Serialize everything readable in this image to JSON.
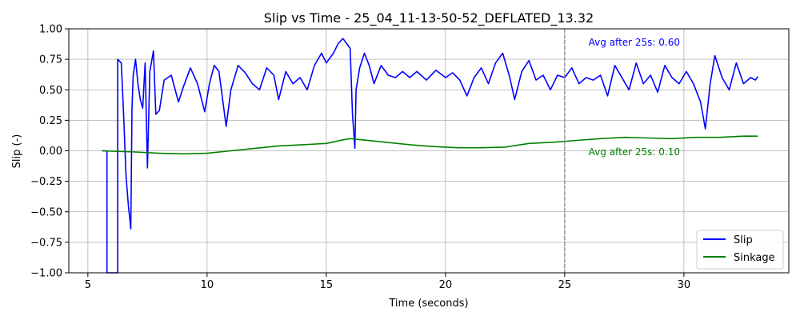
{
  "chart_data": {
    "type": "line",
    "title": "Slip vs Time - 25_04_11-13-50-52_DEFLATED_13.32",
    "xlabel": "Time (seconds)",
    "ylabel": "Slip (-)",
    "xlim": [
      4.2,
      34.4
    ],
    "ylim": [
      -1.0,
      1.0
    ],
    "xticks": [
      5,
      10,
      15,
      20,
      25,
      30
    ],
    "xtick_labels": [
      "5",
      "10",
      "15",
      "20",
      "25",
      "30"
    ],
    "yticks": [
      -1.0,
      -0.75,
      -0.5,
      -0.25,
      0.0,
      0.25,
      0.5,
      0.75,
      1.0
    ],
    "ytick_labels": [
      "−1.00",
      "−0.75",
      "−0.50",
      "−0.25",
      "0.00",
      "0.25",
      "0.50",
      "0.75",
      "1.00"
    ],
    "grid": true,
    "legend_position": "bottom-right",
    "vline": {
      "x": 25,
      "color": "#808080",
      "style": "dashed"
    },
    "series": [
      {
        "name": "Slip",
        "color": "#0000ff",
        "points": [
          [
            5.6,
            0.0
          ],
          [
            5.8,
            0.0
          ],
          [
            5.8,
            -1.0
          ],
          [
            6.25,
            -1.0
          ],
          [
            6.25,
            0.75
          ],
          [
            6.4,
            0.72
          ],
          [
            6.5,
            0.3
          ],
          [
            6.6,
            -0.2
          ],
          [
            6.7,
            -0.45
          ],
          [
            6.8,
            -0.64
          ],
          [
            6.85,
            0.35
          ],
          [
            6.9,
            0.62
          ],
          [
            7.0,
            0.75
          ],
          [
            7.1,
            0.55
          ],
          [
            7.2,
            0.42
          ],
          [
            7.3,
            0.35
          ],
          [
            7.4,
            0.72
          ],
          [
            7.5,
            -0.14
          ],
          [
            7.6,
            0.65
          ],
          [
            7.75,
            0.82
          ],
          [
            7.85,
            0.3
          ],
          [
            8.0,
            0.33
          ],
          [
            8.2,
            0.58
          ],
          [
            8.5,
            0.62
          ],
          [
            8.8,
            0.4
          ],
          [
            9.0,
            0.52
          ],
          [
            9.3,
            0.68
          ],
          [
            9.6,
            0.55
          ],
          [
            9.9,
            0.32
          ],
          [
            10.1,
            0.55
          ],
          [
            10.3,
            0.7
          ],
          [
            10.5,
            0.65
          ],
          [
            10.8,
            0.2
          ],
          [
            11.0,
            0.5
          ],
          [
            11.3,
            0.7
          ],
          [
            11.6,
            0.64
          ],
          [
            11.9,
            0.55
          ],
          [
            12.2,
            0.5
          ],
          [
            12.5,
            0.68
          ],
          [
            12.8,
            0.62
          ],
          [
            13.0,
            0.42
          ],
          [
            13.3,
            0.65
          ],
          [
            13.6,
            0.55
          ],
          [
            13.9,
            0.6
          ],
          [
            14.2,
            0.5
          ],
          [
            14.5,
            0.7
          ],
          [
            14.8,
            0.8
          ],
          [
            15.0,
            0.72
          ],
          [
            15.3,
            0.8
          ],
          [
            15.5,
            0.88
          ],
          [
            15.7,
            0.92
          ],
          [
            16.0,
            0.84
          ],
          [
            16.1,
            0.3
          ],
          [
            16.2,
            0.02
          ],
          [
            16.25,
            0.5
          ],
          [
            16.4,
            0.68
          ],
          [
            16.6,
            0.8
          ],
          [
            16.8,
            0.7
          ],
          [
            17.0,
            0.55
          ],
          [
            17.3,
            0.7
          ],
          [
            17.6,
            0.62
          ],
          [
            17.9,
            0.6
          ],
          [
            18.2,
            0.65
          ],
          [
            18.5,
            0.6
          ],
          [
            18.8,
            0.65
          ],
          [
            19.2,
            0.58
          ],
          [
            19.6,
            0.66
          ],
          [
            20.0,
            0.6
          ],
          [
            20.3,
            0.64
          ],
          [
            20.6,
            0.58
          ],
          [
            20.9,
            0.45
          ],
          [
            21.2,
            0.6
          ],
          [
            21.5,
            0.68
          ],
          [
            21.8,
            0.55
          ],
          [
            22.1,
            0.72
          ],
          [
            22.4,
            0.8
          ],
          [
            22.7,
            0.6
          ],
          [
            22.9,
            0.42
          ],
          [
            23.2,
            0.65
          ],
          [
            23.5,
            0.74
          ],
          [
            23.8,
            0.58
          ],
          [
            24.1,
            0.62
          ],
          [
            24.4,
            0.5
          ],
          [
            24.7,
            0.62
          ],
          [
            25.0,
            0.6
          ],
          [
            25.3,
            0.68
          ],
          [
            25.6,
            0.55
          ],
          [
            25.9,
            0.6
          ],
          [
            26.2,
            0.58
          ],
          [
            26.5,
            0.62
          ],
          [
            26.8,
            0.45
          ],
          [
            27.1,
            0.7
          ],
          [
            27.4,
            0.6
          ],
          [
            27.7,
            0.5
          ],
          [
            28.0,
            0.72
          ],
          [
            28.3,
            0.55
          ],
          [
            28.6,
            0.62
          ],
          [
            28.9,
            0.48
          ],
          [
            29.2,
            0.7
          ],
          [
            29.5,
            0.6
          ],
          [
            29.8,
            0.55
          ],
          [
            30.1,
            0.65
          ],
          [
            30.4,
            0.55
          ],
          [
            30.7,
            0.4
          ],
          [
            30.9,
            0.18
          ],
          [
            31.1,
            0.55
          ],
          [
            31.3,
            0.78
          ],
          [
            31.6,
            0.6
          ],
          [
            31.9,
            0.5
          ],
          [
            32.2,
            0.72
          ],
          [
            32.5,
            0.55
          ],
          [
            32.8,
            0.6
          ],
          [
            33.0,
            0.58
          ],
          [
            33.1,
            0.61
          ]
        ]
      },
      {
        "name": "Sinkage",
        "color": "#008000",
        "points": [
          [
            5.6,
            0.0
          ],
          [
            6.0,
            -0.003
          ],
          [
            7.0,
            -0.01
          ],
          [
            8.0,
            -0.02
          ],
          [
            9.0,
            -0.025
          ],
          [
            10.0,
            -0.02
          ],
          [
            11.0,
            0.0
          ],
          [
            12.0,
            0.02
          ],
          [
            13.0,
            0.04
          ],
          [
            14.0,
            0.05
          ],
          [
            15.0,
            0.06
          ],
          [
            15.7,
            0.09
          ],
          [
            16.0,
            0.1
          ],
          [
            16.5,
            0.09
          ],
          [
            17.5,
            0.07
          ],
          [
            18.5,
            0.05
          ],
          [
            19.5,
            0.035
          ],
          [
            20.5,
            0.025
          ],
          [
            21.5,
            0.025
          ],
          [
            22.5,
            0.03
          ],
          [
            23.5,
            0.06
          ],
          [
            24.5,
            0.07
          ],
          [
            25.5,
            0.085
          ],
          [
            26.5,
            0.1
          ],
          [
            27.5,
            0.11
          ],
          [
            28.5,
            0.105
          ],
          [
            29.5,
            0.1
          ],
          [
            30.5,
            0.11
          ],
          [
            31.5,
            0.11
          ],
          [
            32.5,
            0.12
          ],
          [
            33.1,
            0.12
          ]
        ]
      }
    ],
    "annotations": [
      {
        "text": "Avg after 25s: 0.60",
        "x": 26.0,
        "y": 0.89,
        "color": "#0000ff"
      },
      {
        "text": "Avg after 25s: 0.10",
        "x": 26.0,
        "y": -0.01,
        "color": "#008000"
      }
    ]
  }
}
